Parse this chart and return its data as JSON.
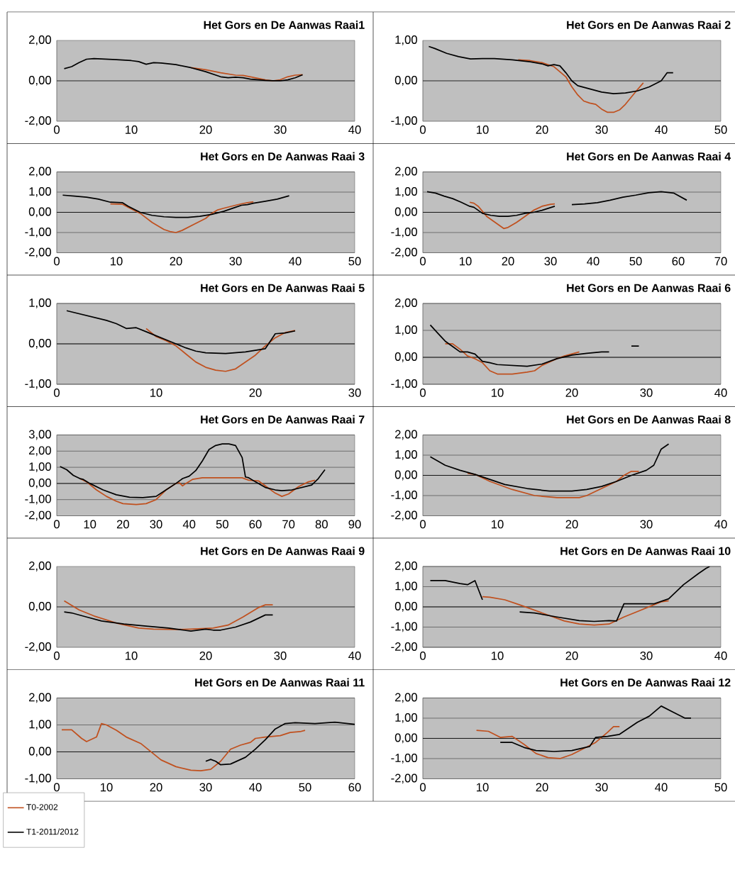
{
  "chart_data": [
    {
      "type": "line",
      "title": "Het Gors en De Aanwas Raai1",
      "xlim": [
        0,
        40
      ],
      "xticks": [
        0,
        10,
        20,
        30,
        40
      ],
      "ylim": [
        -2,
        2
      ],
      "yticks": [
        {
          "value": -2,
          "label": "-2,00"
        },
        {
          "value": 0,
          "label": "0,00"
        },
        {
          "value": 2,
          "label": "2,00"
        }
      ],
      "series": [
        {
          "color": "#c0501e",
          "x": [
            18,
            20,
            22,
            24,
            25,
            26,
            28,
            29,
            30,
            31,
            32,
            33
          ],
          "values": [
            0.65,
            0.55,
            0.4,
            0.28,
            0.27,
            0.2,
            0.05,
            0.0,
            0.05,
            0.2,
            0.28,
            0.3
          ]
        },
        {
          "color": "#000000",
          "x": [
            1,
            2,
            3,
            4,
            5,
            8,
            10,
            11,
            12,
            13,
            14,
            16,
            18,
            20,
            22,
            23,
            24,
            25,
            26,
            28,
            29,
            30,
            31,
            32,
            33
          ],
          "values": [
            0.6,
            0.7,
            0.9,
            1.07,
            1.1,
            1.05,
            1.0,
            0.95,
            0.82,
            0.9,
            0.88,
            0.8,
            0.65,
            0.45,
            0.2,
            0.15,
            0.18,
            0.15,
            0.08,
            0.02,
            0.0,
            0.0,
            0.05,
            0.15,
            0.3
          ]
        }
      ]
    },
    {
      "type": "line",
      "title": "Het Gors en De Aanwas Raai 2",
      "xlim": [
        0,
        50
      ],
      "xticks": [
        0,
        10,
        20,
        30,
        40,
        50
      ],
      "ylim": [
        -1,
        1
      ],
      "yticks": [
        {
          "value": -1,
          "label": "-1,00"
        },
        {
          "value": 0,
          "label": "0,00"
        },
        {
          "value": 1,
          "label": "1,00"
        }
      ],
      "series": [
        {
          "color": "#c0501e",
          "x": [
            16,
            18,
            20,
            22,
            24,
            25,
            26,
            27,
            28,
            29,
            30,
            31,
            32,
            33,
            34,
            35,
            36,
            37
          ],
          "values": [
            0.52,
            0.5,
            0.45,
            0.35,
            0.1,
            -0.15,
            -0.35,
            -0.5,
            -0.55,
            -0.58,
            -0.7,
            -0.78,
            -0.78,
            -0.72,
            -0.58,
            -0.4,
            -0.22,
            -0.05
          ]
        },
        {
          "color": "#000000",
          "x": [
            1,
            2,
            4,
            6,
            8,
            10,
            12,
            15,
            18,
            20,
            21,
            22,
            23,
            24,
            25,
            26,
            28,
            30,
            32,
            34,
            36,
            38,
            40,
            41,
            42
          ],
          "values": [
            0.85,
            0.8,
            0.68,
            0.6,
            0.54,
            0.55,
            0.55,
            0.52,
            0.47,
            0.42,
            0.37,
            0.4,
            0.37,
            0.2,
            0.0,
            -0.12,
            -0.2,
            -0.28,
            -0.32,
            -0.3,
            -0.25,
            -0.15,
            0.0,
            0.2,
            0.2
          ]
        }
      ]
    },
    {
      "type": "line",
      "title": "Het Gors en De Aanwas Raai 3",
      "xlim": [
        0,
        50
      ],
      "xticks": [
        0,
        10,
        20,
        30,
        40,
        50
      ],
      "ylim": [
        -2,
        2
      ],
      "yticks": [
        {
          "value": -2,
          "label": "-2,00"
        },
        {
          "value": -1,
          "label": "-1,00"
        },
        {
          "value": 0,
          "label": "0,00"
        },
        {
          "value": 1,
          "label": "1,00"
        },
        {
          "value": 2,
          "label": "2,00"
        }
      ],
      "grid": "y",
      "series": [
        {
          "color": "#c0501e",
          "x": [
            9,
            11,
            12,
            14,
            16,
            18,
            19,
            20,
            21,
            23,
            25,
            26,
            27,
            28,
            30,
            31,
            32,
            33
          ],
          "values": [
            0.42,
            0.4,
            0.25,
            -0.05,
            -0.5,
            -0.85,
            -0.95,
            -1.0,
            -0.9,
            -0.6,
            -0.3,
            -0.05,
            0.12,
            0.2,
            0.35,
            0.42,
            0.48,
            0.52
          ]
        },
        {
          "color": "#000000",
          "x": [
            1,
            3,
            5,
            7,
            9,
            11,
            12,
            14,
            16,
            18,
            20,
            22,
            24,
            26,
            28,
            30,
            31,
            32,
            33,
            35,
            37,
            39
          ],
          "values": [
            0.85,
            0.8,
            0.75,
            0.65,
            0.5,
            0.48,
            0.3,
            0.0,
            -0.15,
            -0.22,
            -0.25,
            -0.25,
            -0.2,
            -0.1,
            0.05,
            0.25,
            0.35,
            0.38,
            0.45,
            0.55,
            0.65,
            0.82
          ]
        }
      ]
    },
    {
      "type": "line",
      "title": "Het Gors en De Aanwas Raai 4",
      "xlim": [
        0,
        70
      ],
      "xticks": [
        0,
        10,
        20,
        30,
        40,
        50,
        60,
        70
      ],
      "ylim": [
        -2,
        2
      ],
      "yticks": [
        {
          "value": -2,
          "label": "-2,00"
        },
        {
          "value": -1,
          "label": "-1,00"
        },
        {
          "value": 0,
          "label": "0,00"
        },
        {
          "value": 1,
          "label": "1,00"
        },
        {
          "value": 2,
          "label": "2,00"
        }
      ],
      "grid": "y",
      "series": [
        {
          "color": "#c0501e",
          "x": [
            11,
            12,
            13,
            15,
            17,
            19,
            20,
            22,
            24,
            26,
            28,
            30,
            31
          ],
          "values": [
            0.5,
            0.45,
            0.3,
            -0.2,
            -0.5,
            -0.8,
            -0.75,
            -0.5,
            -0.2,
            0.1,
            0.3,
            0.4,
            0.42
          ]
        },
        {
          "color": "#000000",
          "x": [
            1,
            3,
            5,
            7,
            9,
            11,
            12,
            14,
            16,
            18,
            20,
            22,
            24,
            26,
            28,
            31,
            33,
            35,
            38,
            41,
            44,
            47,
            50,
            53,
            56,
            59,
            62
          ],
          "values": [
            1.02,
            0.95,
            0.8,
            0.68,
            0.5,
            0.3,
            0.25,
            -0.05,
            -0.15,
            -0.2,
            -0.2,
            -0.15,
            -0.05,
            0.0,
            0.1,
            0.3,
            null,
            0.38,
            0.42,
            0.48,
            0.6,
            0.75,
            0.85,
            0.97,
            1.02,
            0.95,
            0.6
          ]
        }
      ]
    },
    {
      "type": "line",
      "title": "Het Gors en De Aanwas Raai 5",
      "xlim": [
        0,
        30
      ],
      "xticks": [
        0,
        10,
        20,
        30
      ],
      "ylim": [
        -1,
        1
      ],
      "yticks": [
        {
          "value": -1,
          "label": "-1,00"
        },
        {
          "value": 0,
          "label": "0,00"
        },
        {
          "value": 1,
          "label": "1,00"
        }
      ],
      "grid": "y",
      "series": [
        {
          "color": "#c0501e",
          "x": [
            9,
            10,
            11,
            12,
            13,
            14,
            15,
            16,
            17,
            18,
            19,
            20,
            21,
            22,
            23,
            24
          ],
          "values": [
            0.38,
            0.18,
            0.08,
            -0.05,
            -0.25,
            -0.45,
            -0.58,
            -0.65,
            -0.68,
            -0.62,
            -0.45,
            -0.28,
            -0.05,
            0.15,
            0.28,
            0.33
          ]
        },
        {
          "color": "#000000",
          "x": [
            1,
            3,
            5,
            6,
            7,
            8,
            9,
            10,
            11,
            12,
            13,
            14,
            15,
            17,
            19,
            21,
            22,
            23,
            24
          ],
          "values": [
            0.82,
            0.7,
            0.58,
            0.5,
            0.38,
            0.4,
            0.3,
            0.2,
            0.1,
            0.0,
            -0.1,
            -0.18,
            -0.22,
            -0.24,
            -0.2,
            -0.12,
            0.25,
            0.27,
            0.32
          ]
        }
      ]
    },
    {
      "type": "line",
      "title": "Het Gors en De Aanwas Raai 6",
      "xlim": [
        0,
        40
      ],
      "xticks": [
        0,
        10,
        20,
        30,
        40
      ],
      "ylim": [
        -1,
        2
      ],
      "yticks": [
        {
          "value": -1,
          "label": "-1,00"
        },
        {
          "value": 0,
          "label": "0,00"
        },
        {
          "value": 1,
          "label": "1,00"
        },
        {
          "value": 2,
          "label": "2,00"
        }
      ],
      "grid": "y",
      "series": [
        {
          "color": "#c0501e",
          "x": [
            3,
            4,
            5,
            6,
            7,
            8,
            9,
            10,
            12,
            14,
            15,
            16,
            18,
            19,
            21
          ],
          "values": [
            0.5,
            0.5,
            0.3,
            0.05,
            -0.05,
            -0.2,
            -0.5,
            -0.62,
            -0.62,
            -0.55,
            -0.5,
            -0.3,
            -0.05,
            0.05,
            0.2
          ]
        },
        {
          "color": "#000000",
          "x": [
            1,
            2,
            3,
            4,
            5,
            6,
            7,
            8,
            9,
            10,
            12,
            14,
            16,
            18,
            20,
            22,
            24,
            25,
            26.5,
            28,
            29
          ],
          "values": [
            1.2,
            0.9,
            0.6,
            0.4,
            0.2,
            0.2,
            0.12,
            -0.15,
            -0.2,
            -0.27,
            -0.3,
            -0.33,
            -0.25,
            -0.05,
            0.08,
            0.15,
            0.2,
            0.2,
            null,
            0.42,
            0.42
          ]
        }
      ]
    },
    {
      "type": "line",
      "title": "Het Gors en De Aanwas Raai 7",
      "xlim": [
        0,
        90
      ],
      "xticks": [
        0,
        10,
        20,
        30,
        40,
        50,
        60,
        70,
        80,
        90
      ],
      "ylim": [
        -2,
        3
      ],
      "yticks": [
        {
          "value": -2,
          "label": "-2,00"
        },
        {
          "value": -1,
          "label": "-1,00"
        },
        {
          "value": 0,
          "label": "0,00"
        },
        {
          "value": 1,
          "label": "1,00"
        },
        {
          "value": 2,
          "label": "2,00"
        },
        {
          "value": 3,
          "label": "3,00"
        }
      ],
      "grid": "y",
      "series": [
        {
          "color": "#c0501e",
          "x": [
            7,
            9,
            12,
            15,
            18,
            20,
            24,
            27,
            30,
            33,
            36,
            37,
            38,
            39,
            41,
            44,
            50,
            56,
            58,
            61,
            64,
            66,
            68,
            70,
            73,
            76,
            78
          ],
          "values": [
            0.3,
            0.1,
            -0.4,
            -0.8,
            -1.1,
            -1.25,
            -1.3,
            -1.25,
            -1.0,
            -0.4,
            0.0,
            0.05,
            -0.15,
            0.0,
            0.25,
            0.35,
            0.35,
            0.35,
            0.2,
            0.15,
            -0.3,
            -0.6,
            -0.8,
            -0.65,
            -0.2,
            0.1,
            0.2
          ]
        },
        {
          "color": "#000000",
          "x": [
            1,
            3,
            5,
            7,
            8,
            10,
            14,
            18,
            22,
            26,
            30,
            33,
            36,
            38,
            40,
            42,
            44,
            46,
            48,
            50,
            52,
            54,
            56,
            57,
            58,
            60,
            63,
            66,
            68,
            71,
            74,
            77,
            79,
            81
          ],
          "values": [
            1.05,
            0.85,
            0.5,
            0.3,
            0.25,
            0.0,
            -0.4,
            -0.7,
            -0.85,
            -0.88,
            -0.8,
            -0.4,
            0.0,
            0.3,
            0.45,
            0.8,
            1.4,
            2.1,
            2.35,
            2.45,
            2.45,
            2.35,
            1.6,
            0.4,
            0.35,
            0.1,
            -0.25,
            -0.4,
            -0.45,
            -0.4,
            -0.25,
            -0.1,
            0.3,
            0.85
          ]
        }
      ]
    },
    {
      "type": "line",
      "title": "Het Gors en De Aanwas Raai 8",
      "xlim": [
        0,
        40
      ],
      "xticks": [
        0,
        10,
        20,
        30,
        40
      ],
      "ylim": [
        -2,
        2
      ],
      "yticks": [
        {
          "value": -2,
          "label": "-2,00"
        },
        {
          "value": -1,
          "label": "-1,00"
        },
        {
          "value": 0,
          "label": "0,00"
        },
        {
          "value": 1,
          "label": "1,00"
        },
        {
          "value": 2,
          "label": "2,00"
        }
      ],
      "grid": "y",
      "series": [
        {
          "color": "#c0501e",
          "x": [
            6,
            7,
            9,
            12,
            15,
            18,
            21,
            22,
            24,
            26,
            27,
            28,
            29
          ],
          "values": [
            0.1,
            0.05,
            -0.3,
            -0.7,
            -1.0,
            -1.1,
            -1.1,
            -1.0,
            -0.65,
            -0.3,
            0.0,
            0.2,
            0.2
          ]
        },
        {
          "color": "#000000",
          "x": [
            1,
            3,
            5,
            7,
            9,
            11,
            14,
            17,
            20,
            22,
            24,
            26,
            28,
            30,
            31,
            32,
            33
          ],
          "values": [
            0.92,
            0.5,
            0.25,
            0.05,
            -0.2,
            -0.45,
            -0.65,
            -0.78,
            -0.78,
            -0.7,
            -0.55,
            -0.3,
            0.0,
            0.25,
            0.5,
            1.3,
            1.55
          ]
        }
      ]
    },
    {
      "type": "line",
      "title": "Het Gors en De Aanwas Raai 9",
      "xlim": [
        0,
        40
      ],
      "xticks": [
        0,
        10,
        20,
        30,
        40
      ],
      "ylim": [
        -2,
        2
      ],
      "yticks": [
        {
          "value": -2,
          "label": "-2,00"
        },
        {
          "value": 0,
          "label": "0,00"
        },
        {
          "value": 2,
          "label": "2,00"
        }
      ],
      "series": [
        {
          "color": "#c0501e",
          "x": [
            1,
            3,
            5,
            8,
            11,
            13,
            16,
            18,
            21,
            23,
            25,
            27,
            28,
            29
          ],
          "values": [
            0.3,
            -0.15,
            -0.45,
            -0.8,
            -1.05,
            -1.1,
            -1.12,
            -1.1,
            -1.05,
            -0.9,
            -0.5,
            -0.05,
            0.1,
            0.1
          ]
        },
        {
          "color": "#000000",
          "x": [
            1,
            2,
            4,
            6,
            9,
            12,
            15,
            17,
            18,
            20,
            21,
            22,
            24,
            26,
            28,
            29
          ],
          "values": [
            -0.25,
            -0.3,
            -0.5,
            -0.7,
            -0.85,
            -0.95,
            -1.05,
            -1.15,
            -1.2,
            -1.1,
            -1.15,
            -1.15,
            -1.0,
            -0.75,
            -0.4,
            -0.4
          ]
        }
      ]
    },
    {
      "type": "line",
      "title": "Het Gors en De Aanwas Raai 10",
      "xlim": [
        0,
        40
      ],
      "xticks": [
        0,
        10,
        20,
        30,
        40
      ],
      "ylim": [
        -2,
        2
      ],
      "yticks": [
        {
          "value": -2,
          "label": "-2,00"
        },
        {
          "value": -1,
          "label": "-1,00"
        },
        {
          "value": 0,
          "label": "0,00"
        },
        {
          "value": 1,
          "label": "1,00"
        },
        {
          "value": 2,
          "label": "2,00"
        }
      ],
      "grid": "y",
      "series": [
        {
          "color": "#c0501e",
          "x": [
            8,
            9,
            11,
            13,
            16,
            19,
            21,
            23,
            25,
            27,
            29,
            31,
            32,
            33
          ],
          "values": [
            0.5,
            0.48,
            0.35,
            0.1,
            -0.3,
            -0.7,
            -0.85,
            -0.9,
            -0.85,
            -0.5,
            -0.2,
            0.1,
            0.25,
            0.3
          ]
        },
        {
          "color": "#000000",
          "x": [
            1,
            3,
            5,
            6,
            7,
            8,
            10,
            13,
            15,
            18,
            21,
            23,
            25,
            26,
            27,
            29,
            31,
            33,
            35,
            37,
            38,
            38.5
          ],
          "values": [
            1.3,
            1.3,
            1.15,
            1.1,
            1.3,
            0.35,
            null,
            -0.25,
            -0.3,
            -0.5,
            -0.68,
            -0.72,
            -0.68,
            -0.7,
            0.15,
            0.15,
            0.15,
            0.4,
            1.1,
            1.65,
            1.9,
            2.0
          ]
        }
      ]
    },
    {
      "type": "line",
      "title": "Het Gors en De Aanwas Raai 11",
      "xlim": [
        0,
        60
      ],
      "xticks": [
        0,
        10,
        20,
        30,
        40,
        50,
        60
      ],
      "ylim": [
        -1,
        2
      ],
      "yticks": [
        {
          "value": -1,
          "label": "-1,00"
        },
        {
          "value": 0,
          "label": "0,00"
        },
        {
          "value": 1,
          "label": "1,00"
        },
        {
          "value": 2,
          "label": "2,00"
        }
      ],
      "grid": "y",
      "legend": "bottom left",
      "series": [
        {
          "name": "T0-2002",
          "color": "#c0501e",
          "x": [
            1,
            3,
            5,
            6,
            8,
            9,
            10,
            12,
            14,
            17,
            19,
            21,
            24,
            27,
            29,
            31,
            33,
            35,
            37,
            39,
            40,
            42,
            45,
            47,
            49,
            50
          ],
          "values": [
            0.82,
            0.82,
            0.5,
            0.38,
            0.55,
            1.05,
            1.0,
            0.8,
            0.55,
            0.3,
            0.0,
            -0.3,
            -0.55,
            -0.68,
            -0.7,
            -0.65,
            -0.35,
            0.1,
            0.25,
            0.35,
            0.5,
            0.55,
            0.6,
            0.72,
            0.75,
            0.8
          ]
        },
        {
          "name": "T1-2011/2012",
          "color": "#000000",
          "x": [
            30,
            31,
            32,
            33,
            35,
            38,
            40,
            42,
            44,
            46,
            48,
            52,
            56,
            60
          ],
          "values": [
            -0.35,
            -0.28,
            -0.35,
            -0.48,
            -0.45,
            -0.2,
            0.1,
            0.45,
            0.85,
            1.05,
            1.08,
            1.05,
            1.1,
            1.02
          ]
        }
      ]
    },
    {
      "type": "line",
      "title": "Het Gors en De Aanwas Raai 12",
      "xlim": [
        0,
        50
      ],
      "xticks": [
        0,
        10,
        20,
        30,
        40,
        50
      ],
      "ylim": [
        -2,
        2
      ],
      "yticks": [
        {
          "value": -2,
          "label": "-2,00"
        },
        {
          "value": -1,
          "label": "-1,00"
        },
        {
          "value": 0,
          "label": "0,00"
        },
        {
          "value": 1,
          "label": "1,00"
        },
        {
          "value": 2,
          "label": "2,00"
        }
      ],
      "grid": "y",
      "series": [
        {
          "color": "#c0501e",
          "x": [
            9,
            11,
            13,
            15,
            17,
            19,
            21,
            23,
            25,
            27,
            29,
            31,
            32,
            33
          ],
          "values": [
            0.4,
            0.35,
            0.05,
            0.1,
            -0.3,
            -0.75,
            -0.95,
            -1.0,
            -0.8,
            -0.5,
            -0.2,
            0.3,
            0.58,
            0.58
          ]
        },
        {
          "color": "#000000",
          "x": [
            13,
            15,
            17,
            19,
            22,
            25,
            28,
            29,
            31,
            33,
            36,
            38,
            40,
            42,
            44,
            45
          ],
          "values": [
            -0.2,
            -0.2,
            -0.45,
            -0.6,
            -0.65,
            -0.6,
            -0.4,
            0.05,
            0.1,
            0.2,
            0.8,
            1.1,
            1.6,
            1.3,
            1.0,
            1.0
          ]
        }
      ]
    }
  ]
}
